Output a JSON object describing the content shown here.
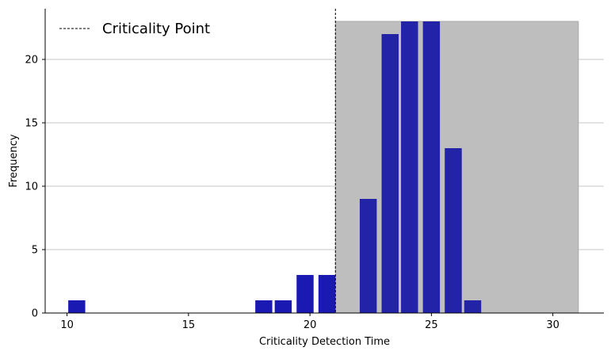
{
  "chart_data": {
    "type": "bar",
    "xlabel": "Criticality Detection Time",
    "ylabel": "Frequency",
    "xlim": [
      9.1,
      32.1
    ],
    "ylim": [
      0,
      24
    ],
    "xticks": [
      10,
      15,
      20,
      25,
      30
    ],
    "yticks": [
      0,
      5,
      10,
      15,
      20
    ],
    "grid": "horizontal",
    "bar_width": 0.7,
    "bar_color": "#1a1ab3",
    "x": [
      10.4,
      18.1,
      18.9,
      19.8,
      20.7,
      22.4,
      23.3,
      24.1,
      25.0,
      25.9,
      26.7
    ],
    "values": [
      1,
      1,
      1,
      3,
      3,
      9,
      22,
      23,
      23,
      13,
      1
    ],
    "criticality_point": 21.05,
    "shaded_region": {
      "x_start": 21.05,
      "x_end": 31.05,
      "y_top": 23,
      "color": "#bebebe"
    },
    "legend": {
      "label": "Criticality Point",
      "position": "top-left",
      "line_style": "dashed"
    }
  }
}
